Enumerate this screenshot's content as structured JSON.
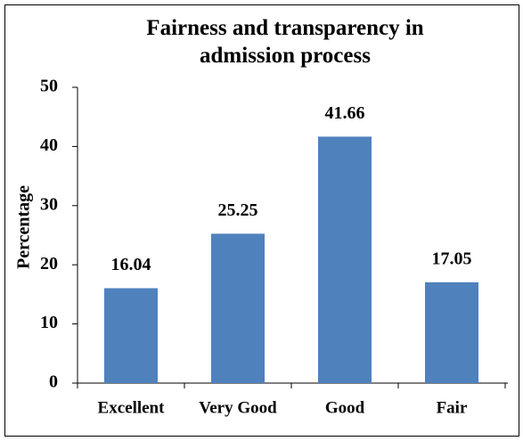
{
  "chart_data": {
    "type": "bar",
    "title": "Fairness and transparency in admission process",
    "y_label": "Percentage",
    "categories": [
      "Excellent",
      "Very Good",
      "Good",
      "Fair"
    ],
    "values": [
      16.04,
      25.25,
      41.66,
      17.05
    ],
    "color": "#4f81bd",
    "ylim": [
      0,
      50
    ],
    "yticks": [
      0,
      10,
      20,
      30,
      40,
      50
    ],
    "grid": false
  }
}
